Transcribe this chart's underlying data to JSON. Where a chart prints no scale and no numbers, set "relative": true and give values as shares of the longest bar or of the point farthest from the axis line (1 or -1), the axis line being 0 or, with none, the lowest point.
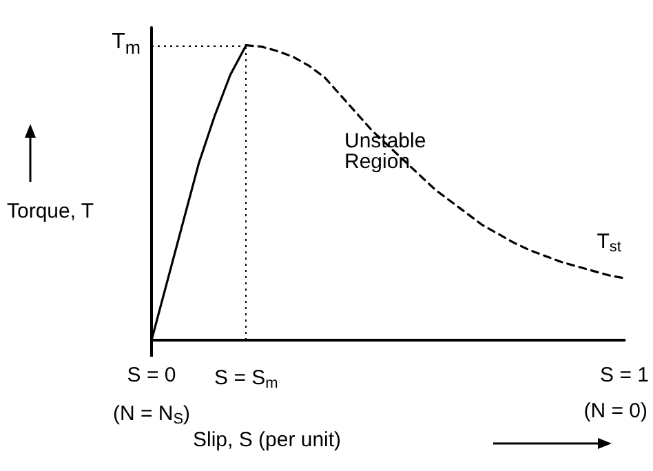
{
  "chart_data": {
    "type": "line",
    "relative": true,
    "xlabel": "Slip, S (per unit)",
    "ylabel": "Torque, T",
    "categories": [
      "S = 0",
      null,
      null,
      null,
      null,
      null,
      "S = S$_{m}$",
      null,
      null,
      null,
      null,
      null,
      null,
      null,
      null,
      null,
      null,
      null,
      null,
      null,
      null,
      null,
      null,
      null,
      null,
      null,
      null,
      null,
      null,
      null,
      "S = 1"
    ],
    "series": [
      {
        "color": "#000000",
        "line_style": "solid",
        "values": [
          0,
          0.2,
          0.4,
          0.6,
          0.76,
          0.9,
          1,
          null,
          null,
          null,
          null,
          null,
          null,
          null,
          null,
          null,
          null,
          null,
          null,
          null,
          null,
          null,
          null,
          null,
          null,
          null,
          null,
          null,
          null,
          null,
          null
        ]
      },
      {
        "color": "#000000",
        "line_style": "dashed",
        "values": [
          null,
          null,
          null,
          null,
          null,
          null,
          1,
          0.995,
          0.98,
          0.96,
          0.93,
          0.89,
          0.83,
          0.77,
          0.71,
          0.66,
          0.61,
          0.56,
          0.51,
          0.47,
          0.43,
          0.39,
          0.36,
          0.33,
          0.305,
          0.285,
          0.265,
          0.25,
          0.235,
          0.22,
          0.21
        ]
      }
    ],
    "ref_lines": [
      {
        "axis": "y",
        "value": 1,
        "label": "T$_{m}$",
        "line_style": "dotted",
        "color": "#000000"
      },
      {
        "axis": "x",
        "value": "S = S$_{m}$",
        "line_style": "dotted",
        "color": "#000000"
      }
    ],
    "annotations": [
      "(N = N$_{S}$)",
      "(N = 0)",
      "Unstable Region",
      "T$_{st}$"
    ],
    "grid": false,
    "marker": "none"
  }
}
